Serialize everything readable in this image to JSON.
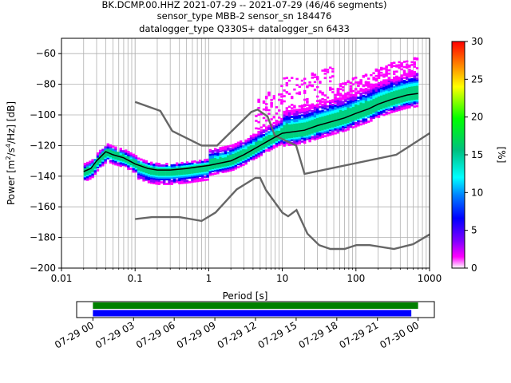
{
  "title_lines": [
    "BK.DCMP.00.HHZ   2021-07-29 -- 2021-07-29  (46/46 segments)",
    "sensor_type MBB-2 sensor_sn 184476",
    "datalogger_type Q330S+ datalogger_sn 6433"
  ],
  "chart_data": [
    {
      "type": "heatmap",
      "name": "ppsd",
      "xlabel": "Period [s]",
      "ylabel_parts": {
        "pre": "Power [m",
        "sup1": "2",
        "mid": "/s",
        "sup2": "4",
        "post": "/Hz] [dB]"
      },
      "xscale": "log",
      "xlim": [
        0.01,
        1000
      ],
      "ylim": [
        -200,
        -50
      ],
      "xticks": [
        {
          "v": 0.01,
          "label": "0.01"
        },
        {
          "v": 0.1,
          "label": "0.1"
        },
        {
          "v": 1,
          "label": "1"
        },
        {
          "v": 10,
          "label": "10"
        },
        {
          "v": 100,
          "label": "100"
        },
        {
          "v": 1000,
          "label": "1000"
        }
      ],
      "yticks": [
        {
          "v": -60,
          "label": "−60"
        },
        {
          "v": -80,
          "label": "−80"
        },
        {
          "v": -100,
          "label": "−100"
        },
        {
          "v": -120,
          "label": "−120"
        },
        {
          "v": -140,
          "label": "−140"
        },
        {
          "v": -160,
          "label": "−160"
        },
        {
          "v": -180,
          "label": "−180"
        },
        {
          "v": -200,
          "label": "−200"
        }
      ],
      "grid": true,
      "colorbar": {
        "label": "[%]",
        "range": [
          0,
          30
        ],
        "ticks": [
          {
            "v": 0,
            "label": "0"
          },
          {
            "v": 5,
            "label": "5"
          },
          {
            "v": 10,
            "label": "10"
          },
          {
            "v": 15,
            "label": "15"
          },
          {
            "v": 20,
            "label": "20"
          },
          {
            "v": 25,
            "label": "25"
          },
          {
            "v": 30,
            "label": "30"
          }
        ]
      },
      "mode_curve": {
        "period": [
          0.02,
          0.025,
          0.03,
          0.04,
          0.05,
          0.07,
          0.1,
          0.15,
          0.2,
          0.3,
          0.5,
          0.7,
          1,
          2,
          3,
          5,
          7,
          10,
          20,
          30,
          50,
          70,
          100,
          150,
          200,
          300,
          500,
          700
        ],
        "power": [
          -137,
          -135,
          -130,
          -124,
          -126,
          -128,
          -132,
          -135,
          -136,
          -136,
          -135,
          -134,
          -133,
          -130,
          -126,
          -120,
          -116,
          -112,
          -110,
          -107,
          -104,
          -102,
          -99,
          -96,
          -93,
          -90,
          -87,
          -86
        ]
      },
      "noise_model_high": {
        "period": [
          0.1,
          0.22,
          0.32,
          0.8,
          1.3,
          3.8,
          4.6,
          6.3,
          7.9,
          15.4,
          20,
          354,
          1000
        ],
        "power": [
          -91.5,
          -97.4,
          -110.5,
          -120,
          -120,
          -98,
          -96.5,
          -101,
          -113.5,
          -120,
          -138.5,
          -126,
          -112
        ]
      },
      "noise_model_low": {
        "period": [
          0.1,
          0.17,
          0.4,
          0.8,
          1.24,
          2.4,
          4.3,
          5,
          6,
          10,
          12,
          15.6,
          21.9,
          31.6,
          45,
          70,
          101,
          154,
          328,
          600,
          1000
        ],
        "power": [
          -168,
          -166.7,
          -166.7,
          -169.2,
          -163.7,
          -148.6,
          -141.1,
          -141.1,
          -149,
          -163.8,
          -166.2,
          -162.1,
          -177.5,
          -185,
          -187.5,
          -187.5,
          -185,
          -185,
          -187.5,
          -184.4,
          -178
        ]
      }
    },
    {
      "type": "timeline",
      "name": "data-coverage",
      "x_ticks": [
        "07-29 00",
        "07-29 03",
        "07-29 06",
        "07-29 09",
        "07-29 12",
        "07-29 15",
        "07-29 18",
        "07-29 21",
        "07-30 00"
      ],
      "x_hours": [
        0,
        3,
        6,
        9,
        12,
        15,
        18,
        21,
        24
      ],
      "xlim_hours": [
        -1.2,
        25.2
      ],
      "bars": [
        {
          "start_hour": 0,
          "end_hour": 24.0,
          "color": "#008000"
        },
        {
          "start_hour": 0,
          "end_hour": 23.5,
          "color": "#0000ff"
        }
      ]
    }
  ]
}
